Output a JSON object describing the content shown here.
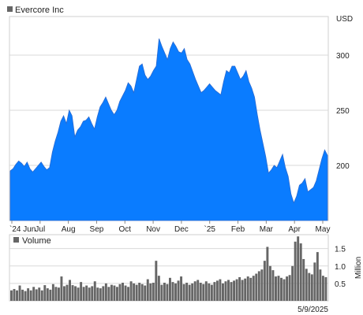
{
  "chart_data": [
    {
      "type": "area",
      "legend": "Evercore Inc",
      "unit_label": "USD",
      "color": "#0a7cff",
      "ylim": [
        150,
        335
      ],
      "y_ticks": [
        200,
        250,
        300
      ],
      "x_ticks": [
        "`24 Jun",
        "Jul",
        "Aug",
        "Sep",
        "Oct",
        "Nov",
        "Dec",
        "`25",
        "Feb",
        "Mar",
        "Apr",
        "May"
      ],
      "grid": true,
      "series": [
        {
          "values": [
            195,
            197,
            201,
            204,
            202,
            199,
            203,
            197,
            194,
            197,
            200,
            203,
            199,
            196,
            198,
            212,
            222,
            230,
            240,
            245,
            238,
            250,
            245,
            226,
            232,
            235,
            240,
            241,
            244,
            238,
            233,
            244,
            253,
            257,
            262,
            256,
            250,
            246,
            250,
            258,
            263,
            268,
            275,
            272,
            266,
            278,
            290,
            292,
            282,
            278,
            281,
            286,
            290,
            315,
            308,
            302,
            296,
            306,
            312,
            308,
            303,
            302,
            306,
            296,
            292,
            285,
            278,
            272,
            266,
            268,
            271,
            274,
            271,
            268,
            266,
            264,
            276,
            286,
            284,
            290,
            290,
            284,
            278,
            281,
            286,
            276,
            270,
            262,
            246,
            232,
            220,
            208,
            193,
            196,
            200,
            198,
            204,
            210,
            198,
            190,
            174,
            166,
            172,
            182,
            184,
            188,
            176,
            178,
            180,
            186,
            196,
            206,
            214,
            209
          ]
        }
      ]
    },
    {
      "type": "bar",
      "legend": "Volume",
      "unit_label": "Million",
      "color": "#666666",
      "ylim": [
        0,
        1.9
      ],
      "y_ticks": [
        0.5,
        1.0,
        1.5
      ],
      "y_tick_labels": [
        "0.5",
        "1.0",
        "1.5"
      ],
      "grid": true,
      "series": [
        {
          "values": [
            0.3,
            0.34,
            0.3,
            0.44,
            0.32,
            0.28,
            0.36,
            0.3,
            0.4,
            0.33,
            0.38,
            0.3,
            0.45,
            0.36,
            0.32,
            0.48,
            0.4,
            0.38,
            0.7,
            0.42,
            0.46,
            0.6,
            0.45,
            0.42,
            0.38,
            0.54,
            0.4,
            0.44,
            0.38,
            0.42,
            0.56,
            0.38,
            0.36,
            0.42,
            0.5,
            0.4,
            0.46,
            0.44,
            0.4,
            0.48,
            0.52,
            0.44,
            0.4,
            0.56,
            0.5,
            0.46,
            0.52,
            0.48,
            0.44,
            0.62,
            0.5,
            0.52,
            1.15,
            0.72,
            0.46,
            0.52,
            0.48,
            0.66,
            0.54,
            0.5,
            0.58,
            0.7,
            0.48,
            0.52,
            0.46,
            0.5,
            0.56,
            0.6,
            0.52,
            0.48,
            0.56,
            0.5,
            0.46,
            0.54,
            0.58,
            0.62,
            0.5,
            0.56,
            0.6,
            0.54,
            0.58,
            0.62,
            0.68,
            0.6,
            0.64,
            0.7,
            0.66,
            0.72,
            0.78,
            0.85,
            0.9,
            1.15,
            1.55,
            1.0,
            0.88,
            0.7,
            0.72,
            0.66,
            0.62,
            0.7,
            0.74,
            1.0,
            1.7,
            1.85,
            1.65,
            1.2,
            0.92,
            0.8,
            0.76,
            1.1,
            1.4,
            0.9,
            0.72,
            0.68
          ]
        }
      ],
      "date_label": "5/9/2025"
    }
  ]
}
